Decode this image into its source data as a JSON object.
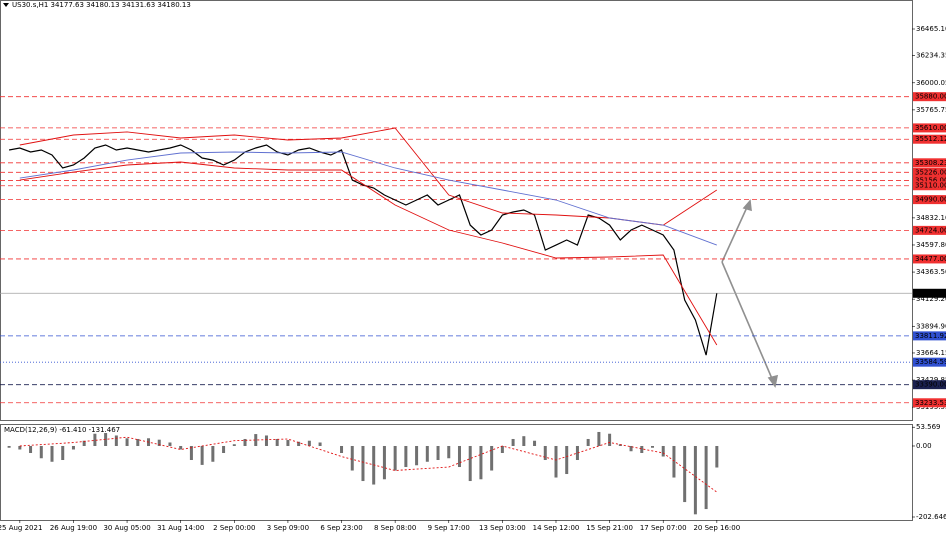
{
  "chart_data": [
    {
      "type": "line",
      "title": "US30.s,H1  34177.63 34180.13 34131.63 34180.13",
      "xlim": [
        -0.37,
        16.64
      ],
      "ylim": [
        33084.6,
        36715.8
      ],
      "xticks": [
        {
          "value": 0,
          "label": "25 Aug 2021"
        },
        {
          "value": 1,
          "label": "26 Aug 19:00"
        },
        {
          "value": 2,
          "label": "30 Aug 05:00"
        },
        {
          "value": 3,
          "label": "31 Aug 14:00"
        },
        {
          "value": 4,
          "label": "2 Sep 00:00"
        },
        {
          "value": 5,
          "label": "3 Sep 09:00"
        },
        {
          "value": 6,
          "label": "6 Sep 23:00"
        },
        {
          "value": 7,
          "label": "8 Sep 08:00"
        },
        {
          "value": 8,
          "label": "9 Sep 17:00"
        },
        {
          "value": 9,
          "label": "13 Sep 03:00"
        },
        {
          "value": 10,
          "label": "14 Sep 12:00"
        },
        {
          "value": 11,
          "label": "15 Sep 21:00"
        },
        {
          "value": 12,
          "label": "17 Sep 07:00"
        },
        {
          "value": 13,
          "label": "20 Sep 16:00"
        }
      ],
      "yticks": [
        {
          "value": 36465.1,
          "label": "36465.10"
        },
        {
          "value": 36234.35,
          "label": "36234.35"
        },
        {
          "value": 36000.05,
          "label": "36000.05"
        },
        {
          "value": 35765.75,
          "label": "35765.75"
        },
        {
          "value": 34832.1,
          "label": "34832.10"
        },
        {
          "value": 34597.8,
          "label": "34597.80"
        },
        {
          "value": 34363.5,
          "label": "34363.50"
        },
        {
          "value": 34129.2,
          "label": "34129.20"
        },
        {
          "value": 33894.9,
          "label": "33894.90"
        },
        {
          "value": 33664.15,
          "label": "33664.15"
        },
        {
          "value": 33429.85,
          "label": "33429.85"
        },
        {
          "value": 33195.55,
          "label": "33195.55"
        }
      ],
      "levels": [
        {
          "value": 35880,
          "label": "35880.00",
          "color": "#f03030"
        },
        {
          "value": 35610,
          "label": "35610.00",
          "color": "#f03030"
        },
        {
          "value": 35512.12,
          "label": "35512.12",
          "color": "#f03030"
        },
        {
          "value": 35308.23,
          "label": "35308.23",
          "color": "#f03030"
        },
        {
          "value": 35226,
          "label": "35226.00",
          "color": "#f03030"
        },
        {
          "value": 35156,
          "label": "35156.00",
          "color": "#f03030"
        },
        {
          "value": 35110,
          "label": "35110.00",
          "color": "#f03030"
        },
        {
          "value": 34990,
          "label": "34990.00",
          "color": "#f03030"
        },
        {
          "value": 34724,
          "label": "34724.00",
          "color": "#f03030"
        },
        {
          "value": 34477,
          "label": "34477.00",
          "color": "#f03030"
        },
        {
          "value": 34180.13,
          "label": "34180.13",
          "color": "#000000"
        },
        {
          "value": 33811.92,
          "label": "33811.92",
          "color": "#3050d0"
        },
        {
          "value": 33584.59,
          "label": "33584.59",
          "color": "#3050d0"
        },
        {
          "value": 33390,
          "label": "33390.00",
          "color": "#1a2050"
        },
        {
          "value": 33233.53,
          "label": "33233.53",
          "color": "#f03030"
        }
      ],
      "series": [
        {
          "color": "#000000",
          "x": [
            -0.2,
            0,
            0.2,
            0.4,
            0.6,
            0.8,
            1,
            1.2,
            1.4,
            1.6,
            1.8,
            2,
            2.2,
            2.4,
            2.6,
            2.8,
            3,
            3.2,
            3.4,
            3.6,
            3.8,
            4,
            4.2,
            4.4,
            4.6,
            4.8,
            5,
            5.2,
            5.4,
            5.6,
            5.8,
            6,
            6.2,
            6.4,
            6.6,
            6.8,
            7,
            7.2,
            7.4,
            7.6,
            7.8,
            8,
            8.2,
            8.4,
            8.6,
            8.8,
            9,
            9.2,
            9.4,
            9.6,
            9.8,
            10,
            10.2,
            10.4,
            10.6,
            10.8,
            11,
            11.2,
            11.4,
            11.6,
            11.8,
            12,
            12.2,
            12.4,
            12.6,
            12.8,
            13
          ],
          "values": [
            35419,
            35436,
            35402,
            35419,
            35376,
            35263,
            35289,
            35350,
            35436,
            35462,
            35419,
            35436,
            35419,
            35402,
            35419,
            35436,
            35462,
            35419,
            35350,
            35332,
            35289,
            35332,
            35402,
            35436,
            35462,
            35402,
            35376,
            35419,
            35436,
            35402,
            35376,
            35419,
            35159,
            35116,
            35090,
            35030,
            34987,
            34943,
            34987,
            35030,
            34943,
            34987,
            35030,
            34770,
            34684,
            34727,
            34857,
            34883,
            34900,
            34857,
            34554,
            34597,
            34641,
            34597,
            34857,
            34831,
            34770,
            34641,
            34727,
            34770,
            34727,
            34684,
            34554,
            34122,
            33949,
            33646,
            34180
          ]
        },
        {
          "color": "#e01010",
          "x": [
            0,
            1,
            2,
            3,
            4,
            5,
            6,
            7,
            8,
            9,
            10,
            11,
            12,
            13
          ],
          "values": [
            35462,
            35549,
            35575,
            35523,
            35549,
            35505,
            35523,
            35609,
            35030,
            34874,
            34857,
            34831,
            34770,
            35073
          ]
        },
        {
          "color": "#e01010",
          "x": [
            0,
            1,
            2,
            3,
            4,
            5,
            6,
            7,
            8,
            9,
            10,
            11,
            12,
            13
          ],
          "values": [
            35159,
            35228,
            35289,
            35315,
            35263,
            35246,
            35246,
            34943,
            34727,
            34615,
            34485,
            34494,
            34511,
            33733
          ]
        },
        {
          "color": "#6070d0",
          "x": [
            0,
            1,
            2,
            3,
            4,
            5,
            6,
            7,
            8,
            9,
            10,
            11,
            12,
            13
          ],
          "values": [
            35176,
            35246,
            35332,
            35393,
            35402,
            35393,
            35402,
            35263,
            35159,
            35073,
            34987,
            34831,
            34770,
            34597
          ]
        }
      ]
    },
    {
      "type": "macd",
      "title": "MACD(12,26,9) -61.410 -131.467",
      "xlim": [
        -0.37,
        16.64
      ],
      "ylim": [
        -211.2,
        59.9
      ],
      "yticks": [
        53.569,
        {
          "value": 0,
          "label": "0.00"
        },
        -202.646
      ],
      "series": [
        {
          "color": "#707070",
          "x": [
            -0.2,
            0,
            0.2,
            0.4,
            0.6,
            0.8,
            1,
            1.2,
            1.4,
            1.6,
            1.8,
            2,
            2.2,
            2.4,
            2.6,
            2.8,
            3,
            3.2,
            3.4,
            3.6,
            3.8,
            4,
            4.2,
            4.4,
            4.6,
            4.8,
            5,
            5.2,
            5.4,
            5.6,
            5.8,
            6,
            6.2,
            6.4,
            6.6,
            6.8,
            7,
            7.2,
            7.4,
            7.6,
            7.8,
            8,
            8.2,
            8.4,
            8.6,
            8.8,
            9,
            9.2,
            9.4,
            9.6,
            9.8,
            10,
            10.2,
            10.4,
            10.6,
            10.8,
            11,
            11.2,
            11.4,
            11.6,
            11.8,
            12,
            12.2,
            12.4,
            12.6,
            12.8,
            13
          ],
          "values": [
            -5,
            -10,
            -20,
            -35,
            -45,
            -40,
            -10,
            15,
            35,
            37,
            30,
            22,
            20,
            22,
            18,
            10,
            -10,
            -40,
            -54,
            -45,
            -20,
            5,
            20,
            34,
            30,
            20,
            17,
            12,
            15,
            10,
            0,
            -20,
            -70,
            -100,
            -110,
            -95,
            -70,
            -60,
            -55,
            -45,
            -40,
            -35,
            -60,
            -100,
            -95,
            -70,
            -20,
            20,
            28,
            15,
            -40,
            -90,
            -80,
            -40,
            20,
            40,
            35,
            5,
            -15,
            -20,
            -5,
            -30,
            -90,
            -160,
            -195,
            -180,
            -61.41
          ]
        },
        {
          "color": "#e01010",
          "x": [
            0,
            1,
            2,
            3,
            4,
            5,
            6,
            7,
            8,
            9,
            10,
            11,
            12,
            13
          ],
          "values": [
            0,
            10,
            25,
            -10,
            15,
            20,
            -30,
            -70,
            -60,
            0,
            -40,
            10,
            -20,
            -131.467
          ]
        }
      ]
    }
  ]
}
